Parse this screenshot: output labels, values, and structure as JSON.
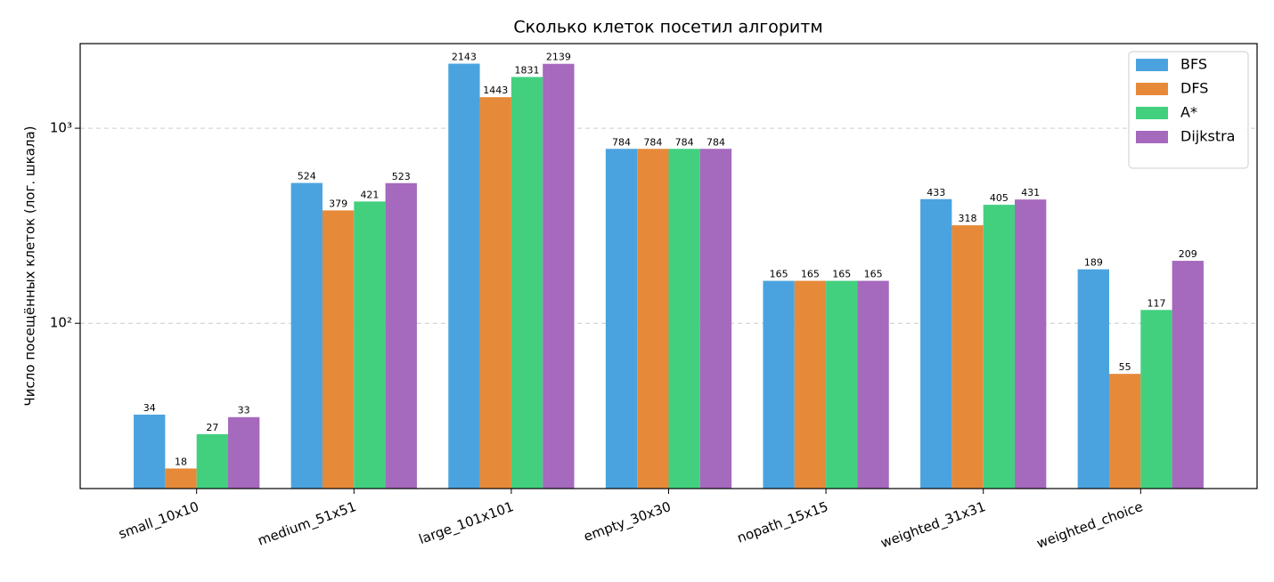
{
  "chart_data": {
    "type": "bar",
    "title": "Сколько клеток посетил алгоритм",
    "y_label": "Число посещённых клеток (лог. шкала)",
    "categories": [
      "small_10x10",
      "medium_51x51",
      "large_101x101",
      "empty_30x30",
      "nopath_15x15",
      "weighted_31x31",
      "weighted_choice"
    ],
    "series": [
      {
        "name": "BFS",
        "color": "#4aa3df",
        "values": [
          34,
          524,
          2143,
          784,
          165,
          433,
          189
        ]
      },
      {
        "name": "DFS",
        "color": "#e68a3a",
        "values": [
          18,
          379,
          1443,
          784,
          165,
          318,
          55
        ]
      },
      {
        "name": "A*",
        "color": "#42d07f",
        "values": [
          27,
          421,
          1831,
          784,
          165,
          405,
          117
        ]
      },
      {
        "name": "Dijkstra",
        "color": "#a569bd",
        "values": [
          33,
          523,
          2139,
          784,
          165,
          431,
          209
        ]
      }
    ],
    "log_scale": true,
    "ylim": [
      14.2,
      2716
    ],
    "yticks": [
      {
        "value": 100,
        "label": "10²"
      },
      {
        "value": 1000,
        "label": "10³"
      }
    ],
    "grid": true,
    "legend": "upper-right"
  }
}
